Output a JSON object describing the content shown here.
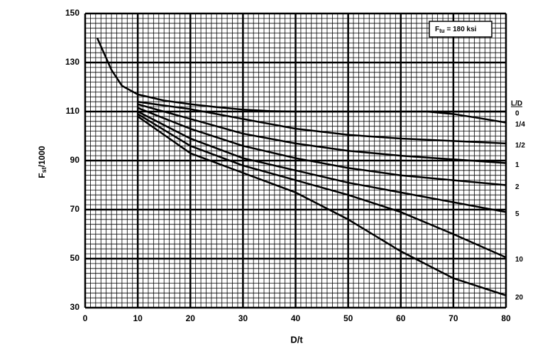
{
  "chart_data": {
    "type": "line",
    "xlabel": "D/t",
    "ylabel": {
      "main": "F",
      "sub": "st",
      "rest": "/1000"
    },
    "annotation": {
      "main": "F",
      "sub": "tu",
      "rest": " = 180 ksi"
    },
    "legend_title": "L/D",
    "xlim": [
      0,
      80
    ],
    "xticks": [
      0,
      10,
      20,
      30,
      40,
      50,
      60,
      70,
      80
    ],
    "ylim": [
      30,
      150
    ],
    "yticks": [
      30,
      50,
      70,
      90,
      110,
      130,
      150
    ],
    "grid": true,
    "color": "#000000",
    "series": [
      {
        "name": "0",
        "x": [
          2.3,
          5,
          7,
          10,
          15,
          20,
          25,
          30,
          35,
          40,
          50,
          60,
          70,
          80
        ],
        "values": [
          140,
          127,
          120.5,
          117,
          114.5,
          113,
          111.8,
          110.8,
          110.2,
          110,
          110,
          110,
          110,
          110
        ]
      },
      {
        "name": "1/4",
        "x": [
          65,
          70,
          75,
          80
        ],
        "values": [
          110,
          109,
          107.3,
          105.5
        ]
      },
      {
        "name": "1/2",
        "x": [
          10,
          20,
          30,
          40,
          50,
          60,
          70,
          80
        ],
        "values": [
          114,
          111,
          107,
          103,
          100.5,
          99,
          98,
          97
        ]
      },
      {
        "name": "1",
        "x": [
          10,
          20,
          30,
          40,
          50,
          60,
          70,
          80
        ],
        "values": [
          113,
          107,
          101,
          97,
          94,
          92,
          90.5,
          89
        ]
      },
      {
        "name": "2",
        "x": [
          10,
          20,
          30,
          40,
          50,
          60,
          70,
          80
        ],
        "values": [
          111.5,
          103,
          96,
          91,
          87,
          84,
          82,
          80
        ]
      },
      {
        "name": "5",
        "x": [
          10,
          20,
          30,
          40,
          50,
          60,
          70,
          80
        ],
        "values": [
          110,
          99,
          91,
          86,
          81,
          77,
          73,
          69
        ]
      },
      {
        "name": "10",
        "x": [
          10,
          20,
          30,
          40,
          50,
          60,
          70,
          80
        ],
        "values": [
          109,
          96,
          88,
          82,
          76,
          69,
          60,
          50.5
        ]
      },
      {
        "name": "20",
        "x": [
          10,
          20,
          30,
          40,
          50,
          60,
          70,
          80
        ],
        "values": [
          108,
          93,
          85,
          77,
          66,
          53,
          42,
          35
        ]
      }
    ]
  }
}
